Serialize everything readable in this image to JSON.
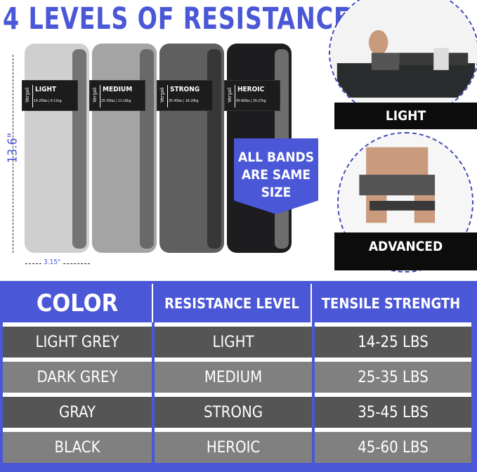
{
  "title": "4 LEVELS OF RESISTANCE",
  "bands": [
    {
      "level": "LIGHT",
      "spec": "14-25lbs | 6-11kg",
      "color": "#cfcfcf",
      "edge": "#555"
    },
    {
      "level": "MEDIUM",
      "spec": "25-35lbs | 11-16kg",
      "color": "#a4a4a4",
      "edge": "#555"
    },
    {
      "level": "STRONG",
      "spec": "35-45lbs | 16-20kg",
      "color": "#5f5f5f",
      "edge": "#2a2a2a"
    },
    {
      "level": "HEROIC",
      "spec": "45-60lbs | 20-27kg",
      "color": "#1d1d1f",
      "edge": "#888"
    }
  ],
  "brand": "Vergali",
  "dimensions": {
    "height": "13.6\"",
    "width": "3.15\""
  },
  "badge": "ALL BANDS ARE SAME SIZE",
  "photos": [
    {
      "label": "LIGHT"
    },
    {
      "label": "ADVANCED"
    }
  ],
  "table": {
    "headers": [
      "COLOR",
      "RESISTANCE LEVEL",
      "TENSILE STRENGTH"
    ],
    "rows": [
      [
        "LIGHT GREY",
        "LIGHT",
        "14-25 LBS"
      ],
      [
        "DARK GREY",
        "MEDIUM",
        "25-35 LBS"
      ],
      [
        "GRAY",
        "STRONG",
        "35-45 LBS"
      ],
      [
        "BLACK",
        "HEROIC",
        "45-60 LBS"
      ]
    ]
  },
  "accent": "#4a57d6"
}
